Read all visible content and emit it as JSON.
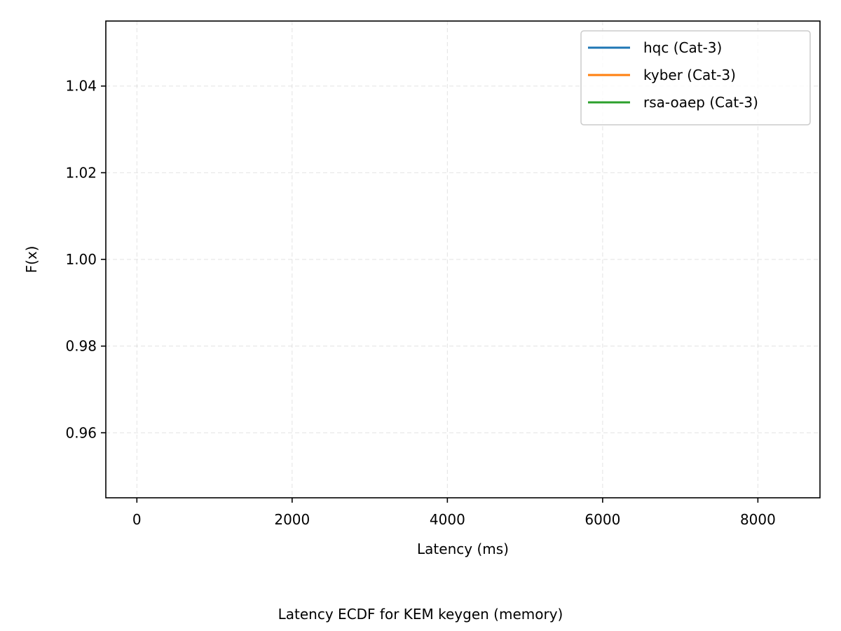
{
  "chart_data": {
    "type": "line",
    "title": "",
    "caption": "Latency ECDF for KEM keygen (memory)",
    "xlabel": "Latency (ms)",
    "ylabel": "F(x)",
    "xlim": [
      -400,
      8800
    ],
    "ylim": [
      0.945,
      1.055
    ],
    "xticks": [
      0,
      2000,
      4000,
      6000,
      8000
    ],
    "xtick_labels": [
      "0",
      "2000",
      "4000",
      "6000",
      "8000"
    ],
    "yticks": [
      0.96,
      0.98,
      1.0,
      1.02,
      1.04
    ],
    "ytick_labels": [
      "0.96",
      "0.98",
      "1.00",
      "1.02",
      "1.04"
    ],
    "grid": true,
    "legend_position": "top-right",
    "series": [
      {
        "name": "hqc (Cat-3)",
        "color": "#1f77b4",
        "x": [],
        "y": []
      },
      {
        "name": "kyber (Cat-3)",
        "color": "#ff7f0e",
        "x": [],
        "y": []
      },
      {
        "name": "rsa-oaep (Cat-3)",
        "color": "#2ca02c",
        "x": [],
        "y": []
      }
    ]
  }
}
